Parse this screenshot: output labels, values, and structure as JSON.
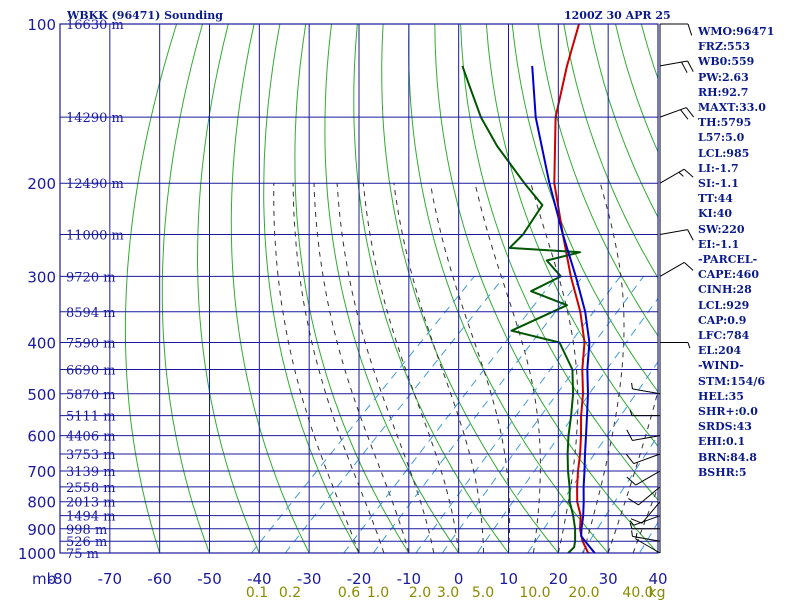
{
  "header": {
    "station": "WBKK (96471) Sounding",
    "time": "1200Z 30 APR 25"
  },
  "indices": [
    "WMO:96471",
    "FRZ:553",
    "WB0:559",
    "PW:2.63",
    "RH:92.7",
    "MAXT:33.0",
    "TH:5795",
    "L57:5.0",
    "LCL:985",
    "LI:-1.7",
    "SI:-1.1",
    "TT:44",
    "KI:40",
    "SW:220",
    "EI:-1.1",
    "-PARCEL-",
    "CAPE:460",
    "CINH:28",
    "LCL:929",
    "CAP:0.9",
    "LFC:784",
    "EL:204",
    "-WIND-",
    "STM:154/6",
    "HEL:35",
    "SHR+:0.0",
    "SRDS:43",
    "EHI:0.1",
    "BRN:84.8",
    "BSHR:5"
  ],
  "colors": {
    "frame": "#1a1a9e",
    "temperature": "#cc0000",
    "dewpoint": "#005500",
    "parcel": "#0000cc",
    "dry_adiabat": "#33aa33",
    "moist_adiabat": "#333333",
    "mixing_ratio": "#4499dd",
    "mixing_label": "#8a8a00",
    "text": "#0a1a8a"
  },
  "chart_data": {
    "type": "line",
    "diagram": "skew-T log-P",
    "xlabel": "mb",
    "x_ticks": [
      -80,
      -70,
      -60,
      -50,
      -40,
      -30,
      -20,
      -10,
      0,
      10,
      20,
      30,
      40
    ],
    "xlim": [
      -80,
      40
    ],
    "ylim": [
      1000,
      100
    ],
    "y_scale": "log",
    "pressure_levels": [
      100,
      200,
      300,
      400,
      500,
      600,
      700,
      800,
      900,
      1000
    ],
    "height_labels": [
      {
        "p": 100,
        "label": "16630 m"
      },
      {
        "p": 150,
        "label": "14290 m"
      },
      {
        "p": 200,
        "label": "12490 m"
      },
      {
        "p": 250,
        "label": "11000 m"
      },
      {
        "p": 300,
        "label": "9720 m"
      },
      {
        "p": 350,
        "label": "8594 m"
      },
      {
        "p": 400,
        "label": "7590 m"
      },
      {
        "p": 450,
        "label": "6690 m"
      },
      {
        "p": 500,
        "label": "5870 m"
      },
      {
        "p": 550,
        "label": "5111 m"
      },
      {
        "p": 600,
        "label": "4406 m"
      },
      {
        "p": 650,
        "label": "3753 m"
      },
      {
        "p": 700,
        "label": "3139 m"
      },
      {
        "p": 750,
        "label": "2558 m"
      },
      {
        "p": 800,
        "label": "2013 m"
      },
      {
        "p": 850,
        "label": "1494 m"
      },
      {
        "p": 900,
        "label": "998 m"
      },
      {
        "p": 950,
        "label": "526 m"
      },
      {
        "p": 1000,
        "label": "75 m"
      }
    ],
    "mixing_ratio_labels": [
      "0.1",
      "0.2",
      "0.6",
      "1.0",
      "2.0",
      "3.0",
      "5.0",
      "10.0",
      "20.0",
      "40.0",
      "kg"
    ],
    "series": [
      {
        "key": "temperature",
        "points": [
          {
            "p": 1005,
            "t": 27.8
          },
          {
            "p": 1000,
            "t": 26.0
          },
          {
            "p": 950,
            "t": 22.5
          },
          {
            "p": 925,
            "t": 21.0
          },
          {
            "p": 900,
            "t": 19.5
          },
          {
            "p": 850,
            "t": 17.0
          },
          {
            "p": 800,
            "t": 13.5
          },
          {
            "p": 750,
            "t": 10.5
          },
          {
            "p": 700,
            "t": 7.5
          },
          {
            "p": 650,
            "t": 4.5
          },
          {
            "p": 600,
            "t": 1.0
          },
          {
            "p": 550,
            "t": -3.0
          },
          {
            "p": 500,
            "t": -7.0
          },
          {
            "p": 450,
            "t": -12.0
          },
          {
            "p": 400,
            "t": -17.0
          },
          {
            "p": 350,
            "t": -24.0
          },
          {
            "p": 300,
            "t": -33.0
          },
          {
            "p": 250,
            "t": -43.0
          },
          {
            "p": 200,
            "t": -55.0
          },
          {
            "p": 150,
            "t": -68.0
          },
          {
            "p": 120,
            "t": -76.0
          },
          {
            "p": 100,
            "t": -82.0
          }
        ]
      },
      {
        "key": "dewpoint",
        "points": [
          {
            "p": 1005,
            "t": 24.0
          },
          {
            "p": 1000,
            "t": 22.0
          },
          {
            "p": 975,
            "t": 22.0
          },
          {
            "p": 950,
            "t": 21.0
          },
          {
            "p": 900,
            "t": 18.5
          },
          {
            "p": 850,
            "t": 15.5
          },
          {
            "p": 800,
            "t": 12.0
          },
          {
            "p": 750,
            "t": 9.0
          },
          {
            "p": 700,
            "t": 5.5
          },
          {
            "p": 650,
            "t": 2.0
          },
          {
            "p": 600,
            "t": -1.5
          },
          {
            "p": 550,
            "t": -5.0
          },
          {
            "p": 500,
            "t": -9.0
          },
          {
            "p": 450,
            "t": -14.0
          },
          {
            "p": 400,
            "t": -22.0
          },
          {
            "p": 380,
            "t": -34.0
          },
          {
            "p": 340,
            "t": -28.0
          },
          {
            "p": 320,
            "t": -38.0
          },
          {
            "p": 300,
            "t": -35.0
          },
          {
            "p": 280,
            "t": -41.0
          },
          {
            "p": 270,
            "t": -36.0
          },
          {
            "p": 265,
            "t": -51.0
          },
          {
            "p": 250,
            "t": -51.0
          },
          {
            "p": 220,
            "t": -53.0
          },
          {
            "p": 200,
            "t": -61.0
          },
          {
            "p": 170,
            "t": -74.0
          },
          {
            "p": 150,
            "t": -83.0
          },
          {
            "p": 130,
            "t": -92.0
          },
          {
            "p": 120,
            "t": -97.0
          }
        ]
      },
      {
        "key": "parcel",
        "points": [
          {
            "p": 1005,
            "t": 28.0
          },
          {
            "p": 1000,
            "t": 27.3
          },
          {
            "p": 950,
            "t": 23.0
          },
          {
            "p": 929,
            "t": 21.2
          },
          {
            "p": 900,
            "t": 19.8
          },
          {
            "p": 850,
            "t": 17.5
          },
          {
            "p": 800,
            "t": 14.8
          },
          {
            "p": 750,
            "t": 11.8
          },
          {
            "p": 700,
            "t": 8.8
          },
          {
            "p": 650,
            "t": 5.5
          },
          {
            "p": 600,
            "t": 2.0
          },
          {
            "p": 550,
            "t": -1.8
          },
          {
            "p": 500,
            "t": -6.0
          },
          {
            "p": 450,
            "t": -11.0
          },
          {
            "p": 400,
            "t": -16.0
          },
          {
            "p": 350,
            "t": -23.0
          },
          {
            "p": 300,
            "t": -32.0
          },
          {
            "p": 250,
            "t": -43.0
          },
          {
            "p": 200,
            "t": -56.0
          },
          {
            "p": 150,
            "t": -72.0
          },
          {
            "p": 120,
            "t": -83.0
          }
        ]
      }
    ],
    "wind_barbs": [
      {
        "p": 1000,
        "dir": 300,
        "kt": 5
      },
      {
        "p": 950,
        "dir": 280,
        "kt": 5
      },
      {
        "p": 900,
        "dir": 270,
        "kt": 5
      },
      {
        "p": 850,
        "dir": 250,
        "kt": 5
      },
      {
        "p": 800,
        "dir": 220,
        "kt": 10
      },
      {
        "p": 750,
        "dir": 230,
        "kt": 10
      },
      {
        "p": 700,
        "dir": 240,
        "kt": 10
      },
      {
        "p": 650,
        "dir": 250,
        "kt": 10
      },
      {
        "p": 600,
        "dir": 260,
        "kt": 10
      },
      {
        "p": 550,
        "dir": 270,
        "kt": 5
      },
      {
        "p": 500,
        "dir": 280,
        "kt": 5
      },
      {
        "p": 400,
        "dir": 90,
        "kt": 5
      },
      {
        "p": 300,
        "dir": 60,
        "kt": 10
      },
      {
        "p": 250,
        "dir": 80,
        "kt": 10
      },
      {
        "p": 200,
        "dir": 60,
        "kt": 15
      },
      {
        "p": 150,
        "dir": 70,
        "kt": 20
      },
      {
        "p": 120,
        "dir": 80,
        "kt": 20
      },
      {
        "p": 100,
        "dir": 90,
        "kt": 10
      }
    ]
  }
}
